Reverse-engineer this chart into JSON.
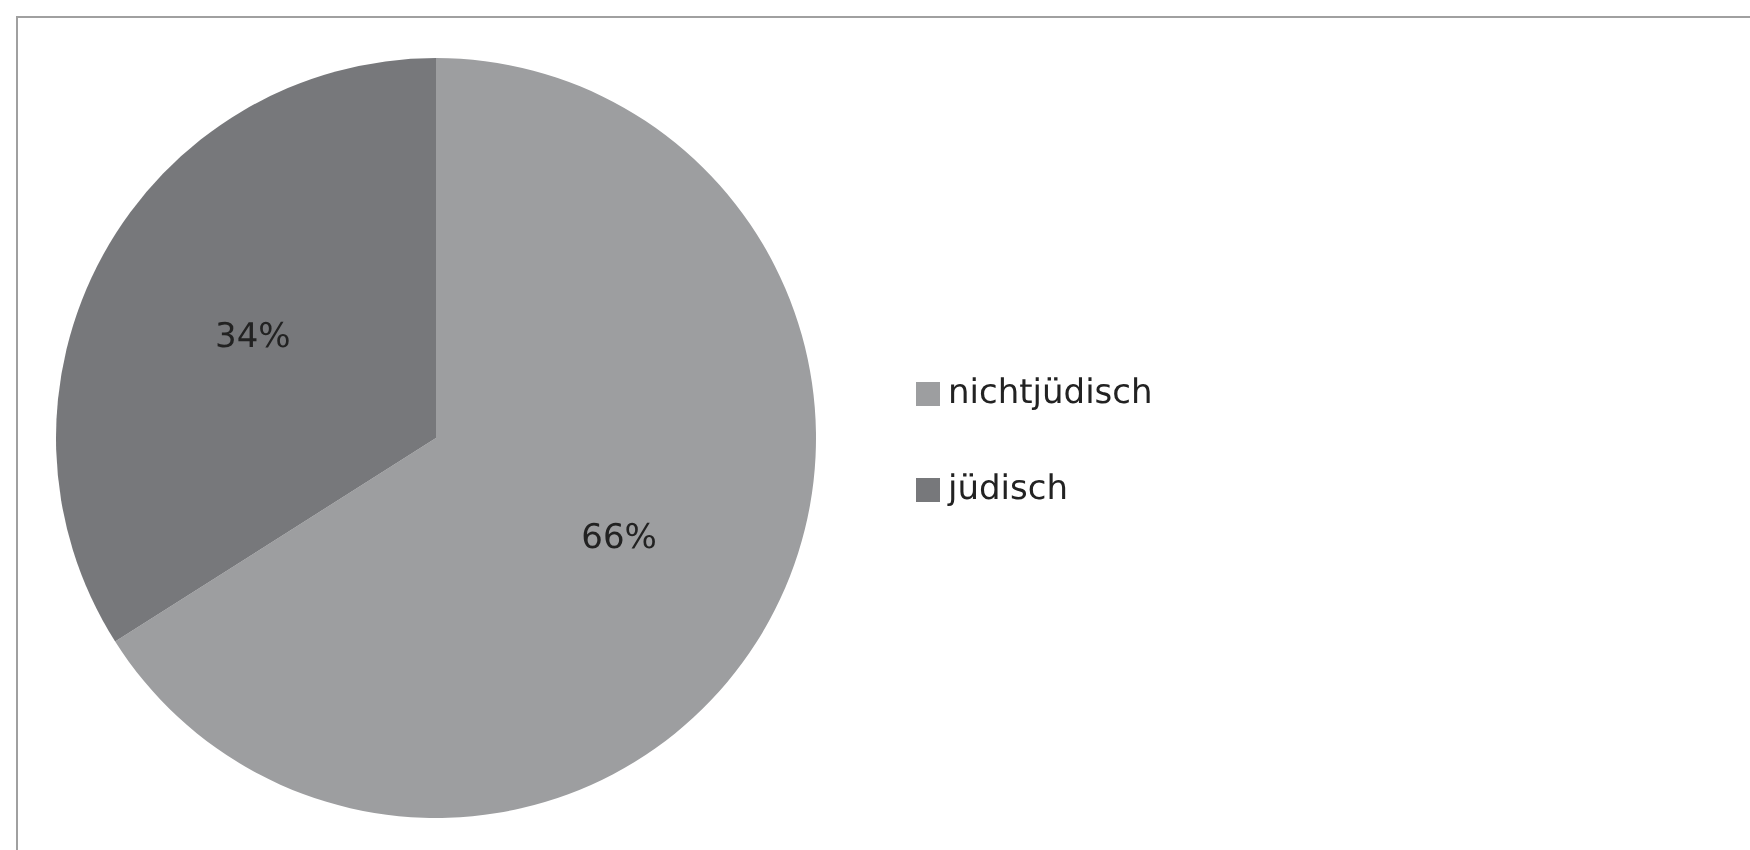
{
  "chart_data": {
    "type": "pie",
    "categories": [
      "nichtjüdisch",
      "jüdisch"
    ],
    "values": [
      66,
      34
    ],
    "value_labels": [
      "66%",
      "34%"
    ],
    "colors": [
      "#9d9ea0",
      "#77787b"
    ],
    "legend": "right"
  }
}
